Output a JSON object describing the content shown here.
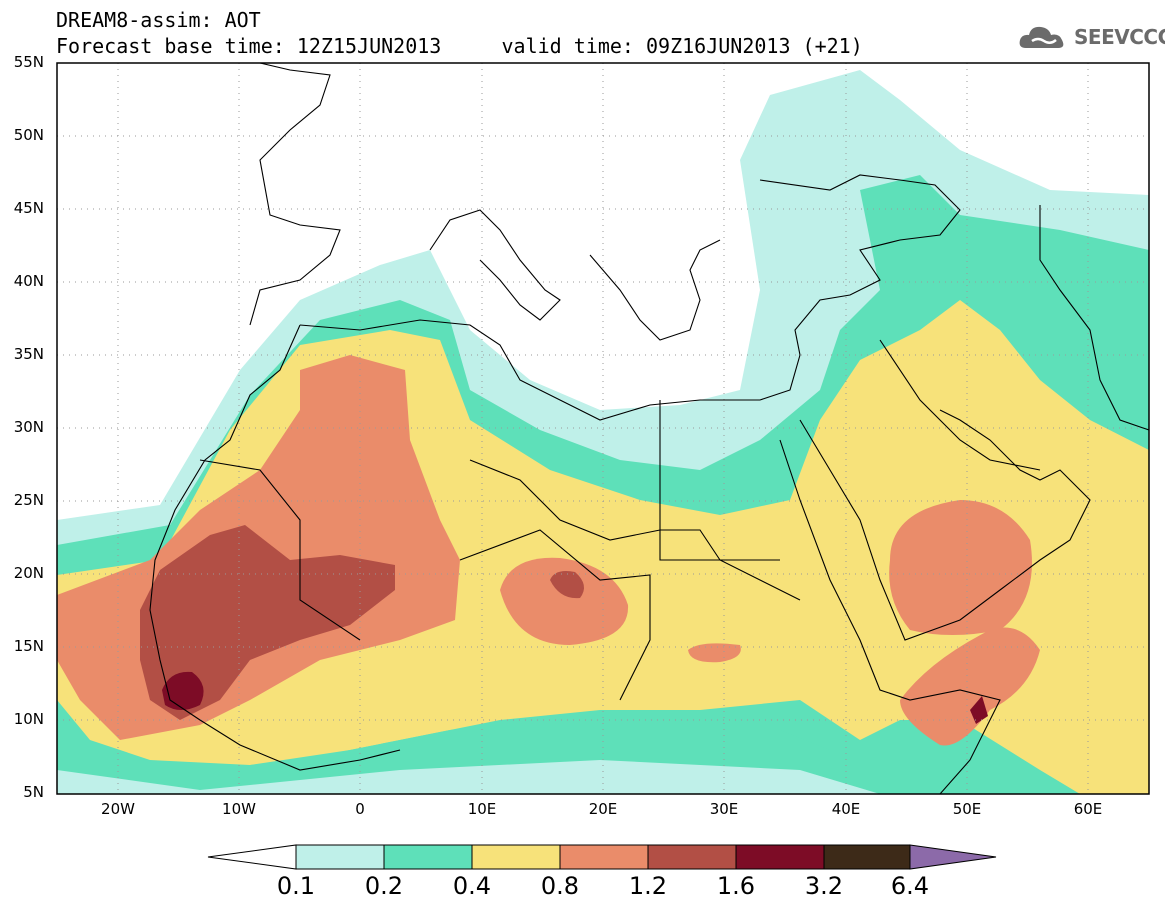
{
  "header": {
    "line1": "DREAM8-assim: AOT",
    "line2": "Forecast base time: 12Z15JUN2013     valid time: 09Z16JUN2013 (+21)"
  },
  "logo": {
    "text": "SEEVCCC",
    "icon": "cloud-icon"
  },
  "map": {
    "lat_labels": [
      "55N",
      "50N",
      "45N",
      "40N",
      "35N",
      "30N",
      "25N",
      "20N",
      "15N",
      "10N",
      "5N"
    ],
    "lon_labels": [
      "20W",
      "10W",
      "0",
      "10E",
      "20E",
      "30E",
      "40E",
      "50E",
      "60E"
    ],
    "lon_range": [
      -25,
      65
    ],
    "lat_range": [
      5,
      55
    ],
    "gridlines": "dotted"
  },
  "colorbar": {
    "labels": [
      "0.1",
      "0.2",
      "0.4",
      "0.8",
      "1.2",
      "1.6",
      "3.2",
      "6.4"
    ],
    "colors": [
      "#bff0e9",
      "#5ee0b9",
      "#f7e27a",
      "#ea8c6a",
      "#b24f45",
      "#7d0c26",
      "#3d2a18",
      "#8c6aa9"
    ]
  }
}
